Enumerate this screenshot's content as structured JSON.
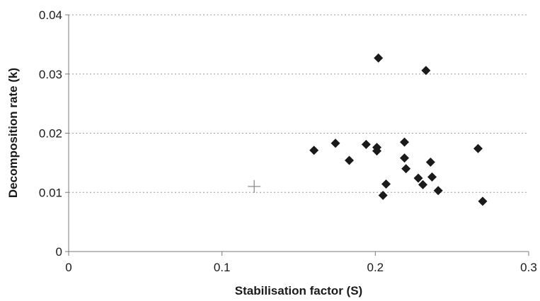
{
  "chart_data": {
    "type": "scatter",
    "title": "",
    "xlabel": "Stabilisation factor (S)",
    "ylabel": "Decomposition rate (k)",
    "xlim": [
      0,
      0.3
    ],
    "ylim": [
      0,
      0.04
    ],
    "x_ticks": [
      "0",
      "0.1",
      "0.2",
      "0.3"
    ],
    "y_ticks": [
      "0",
      "0.01",
      "0.02",
      "0.03",
      "0.04"
    ],
    "grid": "horizontal dotted",
    "legend": "none",
    "series": [
      {
        "marker": "diamond",
        "color": "#1a1a1a",
        "points": [
          {
            "x": 0.16,
            "y": 0.0171
          },
          {
            "x": 0.174,
            "y": 0.0183
          },
          {
            "x": 0.183,
            "y": 0.0154
          },
          {
            "x": 0.194,
            "y": 0.0181
          },
          {
            "x": 0.201,
            "y": 0.0176
          },
          {
            "x": 0.201,
            "y": 0.017
          },
          {
            "x": 0.202,
            "y": 0.0327
          },
          {
            "x": 0.205,
            "y": 0.0095
          },
          {
            "x": 0.207,
            "y": 0.0114
          },
          {
            "x": 0.219,
            "y": 0.0185
          },
          {
            "x": 0.219,
            "y": 0.0158
          },
          {
            "x": 0.22,
            "y": 0.014
          },
          {
            "x": 0.228,
            "y": 0.0124
          },
          {
            "x": 0.231,
            "y": 0.0113
          },
          {
            "x": 0.233,
            "y": 0.0306
          },
          {
            "x": 0.236,
            "y": 0.0151
          },
          {
            "x": 0.237,
            "y": 0.0126
          },
          {
            "x": 0.241,
            "y": 0.0103
          },
          {
            "x": 0.267,
            "y": 0.0174
          },
          {
            "x": 0.27,
            "y": 0.0085
          }
        ]
      },
      {
        "marker": "plus",
        "color": "#8c8c8c",
        "points": [
          {
            "x": 0.121,
            "y": 0.011
          }
        ]
      }
    ]
  }
}
